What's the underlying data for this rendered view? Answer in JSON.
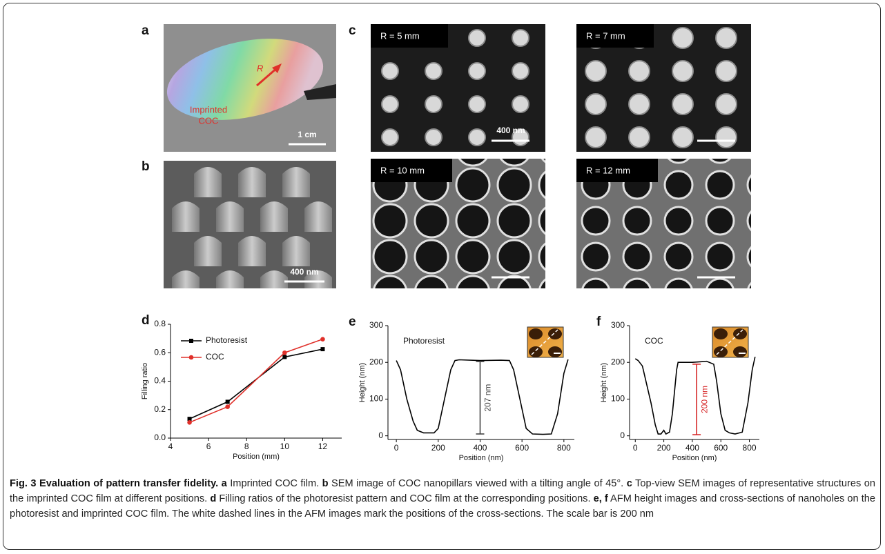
{
  "panels": {
    "a": {
      "letter": "a",
      "arrow_label": "R",
      "film_label": [
        "Imprinted",
        "COC"
      ],
      "scale_bar": "1 cm"
    },
    "b": {
      "letter": "b",
      "scale_bar": "400 nm"
    },
    "c": {
      "letter": "c",
      "images": [
        {
          "label": "R = 5 mm",
          "scale_bar": "400 nm"
        },
        {
          "label": "R = 7 mm"
        },
        {
          "label": "R = 10 mm"
        },
        {
          "label": "R = 12 mm"
        }
      ]
    }
  },
  "chart_data": [
    {
      "panel": "d",
      "type": "line",
      "xlabel": "Position (mm)",
      "ylabel": "Filling ratio",
      "x": [
        5,
        7,
        10,
        12
      ],
      "series": [
        {
          "name": "Photoresist",
          "color": "#000000",
          "marker": "square",
          "values": [
            0.135,
            0.255,
            0.57,
            0.625
          ]
        },
        {
          "name": "COC",
          "color": "#e0302a",
          "marker": "circle",
          "values": [
            0.11,
            0.22,
            0.6,
            0.695
          ]
        }
      ],
      "xlim": [
        4,
        13
      ],
      "xticks": [
        4,
        6,
        8,
        10,
        12
      ],
      "ylim": [
        0,
        0.8
      ],
      "yticks": [
        {
          "value": 0,
          "label": "0.0"
        },
        0.2,
        0.4,
        0.6,
        0.8
      ],
      "legend": "upper left"
    },
    {
      "panel": "e",
      "type": "line",
      "xlabel": "Position (nm)",
      "ylabel": "Height (nm)",
      "annotation": "Photoresist",
      "x": [
        0,
        20,
        50,
        80,
        100,
        130,
        180,
        200,
        230,
        260,
        280,
        300,
        400,
        500,
        540,
        560,
        590,
        620,
        650,
        700,
        740,
        770,
        800,
        820
      ],
      "series": [
        {
          "color": "#000000",
          "values": [
            205,
            180,
            100,
            40,
            15,
            8,
            8,
            20,
            100,
            180,
            205,
            207,
            205,
            206,
            205,
            180,
            100,
            20,
            5,
            4,
            5,
            60,
            170,
            208
          ]
        }
      ],
      "measure": {
        "label": "207 nm",
        "x": 400,
        "from": 5,
        "to": 202,
        "color": "#444444"
      },
      "xlim": [
        -40,
        850
      ],
      "xticks": [
        0,
        200,
        400,
        600,
        800
      ],
      "ylim": [
        -10,
        300
      ],
      "yticks": [
        0,
        100,
        200,
        300
      ]
    },
    {
      "panel": "f",
      "type": "line",
      "xlabel": "Position (nm)",
      "ylabel": "Height (nm)",
      "annotation": "COC",
      "x": [
        0,
        20,
        50,
        80,
        110,
        140,
        160,
        180,
        200,
        215,
        240,
        260,
        290,
        300,
        400,
        500,
        550,
        570,
        600,
        630,
        660,
        700,
        750,
        790,
        820,
        840
      ],
      "series": [
        {
          "color": "#000000",
          "values": [
            210,
            205,
            190,
            140,
            90,
            30,
            5,
            5,
            15,
            5,
            10,
            60,
            180,
            200,
            200,
            203,
            195,
            150,
            60,
            15,
            8,
            5,
            10,
            90,
            180,
            215
          ]
        }
      ],
      "measure": {
        "label": "200 nm",
        "x": 430,
        "from": 3,
        "to": 195,
        "color": "#d62728"
      },
      "xlim": [
        -40,
        870
      ],
      "xticks": [
        0,
        200,
        400,
        600,
        800
      ],
      "ylim": [
        -10,
        300
      ],
      "yticks": [
        0,
        100,
        200,
        300
      ]
    }
  ],
  "caption": {
    "title": "Fig. 3 Evaluation of pattern transfer fidelity.",
    "items": [
      {
        "label": "a",
        "text": "Imprinted COC film."
      },
      {
        "label": "b",
        "text": "SEM image of COC nanopillars viewed with a tilting angle of 45°."
      },
      {
        "label": "c",
        "text": "Top-view SEM images of representative structures on the imprinted COC film at different positions."
      },
      {
        "label": "d",
        "text": "Filling ratios of the photoresist pattern and COC film at the corresponding positions."
      },
      {
        "label": "e, f",
        "text": "AFM height images and cross-sections of nanoholes on the photoresist and imprinted COC film. The white dashed lines in the AFM images mark the positions of the cross-sections. The scale bar is 200 nm"
      }
    ]
  }
}
